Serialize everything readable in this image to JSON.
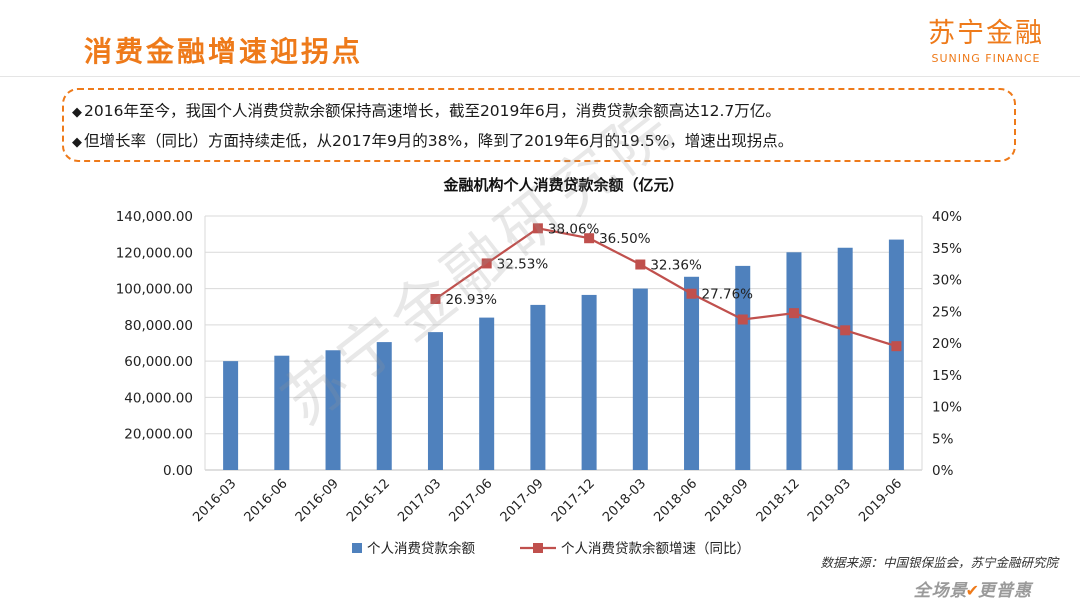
{
  "header": {
    "title": "消费金融增速迎拐点",
    "brand_cn": "苏宁金融",
    "brand_en": "SUNING FINANCE"
  },
  "notes": [
    "2016年至今，我国个人消费贷款余额保持高速增长，截至2019年6月，消费贷款余额高达12.7万亿。",
    "但增长率（同比）方面持续走低，从2017年9月的38%，降到了2019年6月的19.5%，增速出现拐点。"
  ],
  "watermark": "苏宁金融研究院",
  "source": "数据来源：中国银保监会，苏宁金融研究院",
  "footer": {
    "slogan_a": "全场景",
    "slogan_b": "更普惠"
  },
  "colors": {
    "accent": "#ee7a1a",
    "bar": "#4f81bd",
    "line": "#c0504d"
  },
  "chart_data": {
    "type": "bar",
    "title": "金融机构个人消费贷款余额（亿元）",
    "categories": [
      "2016-03",
      "2016-06",
      "2016-09",
      "2016-12",
      "2017-03",
      "2017-06",
      "2017-09",
      "2017-12",
      "2018-03",
      "2018-06",
      "2018-09",
      "2018-12",
      "2019-03",
      "2019-06"
    ],
    "series": [
      {
        "name": "个人消费贷款余额",
        "type": "bar",
        "axis": "left",
        "values": [
          60000,
          63000,
          66000,
          70500,
          76000,
          84000,
          91000,
          96500,
          100000,
          106500,
          112500,
          120000,
          122500,
          127000
        ]
      },
      {
        "name": "个人消费贷款余额增速（同比）",
        "type": "line",
        "axis": "right",
        "values": [
          null,
          null,
          null,
          null,
          26.93,
          32.53,
          38.06,
          36.5,
          32.36,
          27.76,
          23.7,
          24.7,
          22.0,
          19.5
        ],
        "labels": [
          null,
          null,
          null,
          null,
          "26.93%",
          "32.53%",
          "38.06%",
          "36.50%",
          "32.36%",
          "27.76%",
          null,
          null,
          null,
          null
        ]
      }
    ],
    "y_left": {
      "min": 0,
      "max": 140000,
      "step": 20000,
      "tick_labels": [
        "0.00",
        "20,000.00",
        "40,000.00",
        "60,000.00",
        "80,000.00",
        "100,000.00",
        "120,000.00",
        "140,000.00"
      ]
    },
    "y_right": {
      "min": 0,
      "max": 40,
      "step": 5,
      "tick_labels": [
        "0%",
        "5%",
        "10%",
        "15%",
        "20%",
        "25%",
        "30%",
        "35%",
        "40%"
      ]
    },
    "grid": true,
    "legend": "bottom"
  }
}
